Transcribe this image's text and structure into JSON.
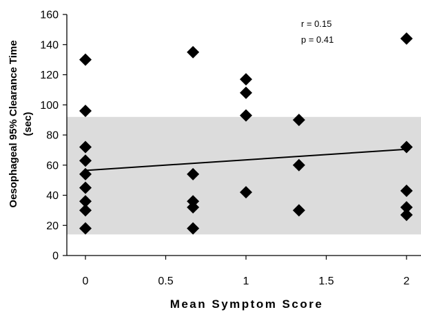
{
  "chart_data": {
    "type": "scatter",
    "title": "",
    "xlabel": "Mean Symptom Score",
    "ylabel_line1": "Oesophageal 95% Clearance Time",
    "ylabel_line2": "(sec)",
    "xlim": [
      0,
      2
    ],
    "ylim": [
      0,
      160
    ],
    "x_ticks": [
      "0",
      "0.5",
      "1",
      "1.5",
      "2"
    ],
    "y_ticks": [
      "0",
      "20",
      "40",
      "60",
      "80",
      "100",
      "120",
      "140",
      "160"
    ],
    "reference_band": {
      "y_min": 14,
      "y_max": 92,
      "color": "#dcdcdc"
    },
    "regression_line": {
      "x": [
        0,
        2
      ],
      "y": [
        56.5,
        70.5
      ]
    },
    "annotations": [
      "r = 0.15",
      "p = 0.41"
    ],
    "points": [
      {
        "x": 0,
        "y": 130
      },
      {
        "x": 0,
        "y": 96
      },
      {
        "x": 0,
        "y": 72
      },
      {
        "x": 0,
        "y": 63
      },
      {
        "x": 0,
        "y": 54
      },
      {
        "x": 0,
        "y": 45
      },
      {
        "x": 0,
        "y": 36
      },
      {
        "x": 0,
        "y": 30
      },
      {
        "x": 0,
        "y": 18
      },
      {
        "x": 0.67,
        "y": 135
      },
      {
        "x": 0.67,
        "y": 54
      },
      {
        "x": 0.67,
        "y": 36
      },
      {
        "x": 0.67,
        "y": 32
      },
      {
        "x": 0.67,
        "y": 18
      },
      {
        "x": 1,
        "y": 117
      },
      {
        "x": 1,
        "y": 108
      },
      {
        "x": 1,
        "y": 93
      },
      {
        "x": 1,
        "y": 42
      },
      {
        "x": 1.33,
        "y": 90
      },
      {
        "x": 1.33,
        "y": 60
      },
      {
        "x": 1.33,
        "y": 30
      },
      {
        "x": 2,
        "y": 144
      },
      {
        "x": 2,
        "y": 72
      },
      {
        "x": 2,
        "y": 43
      },
      {
        "x": 2,
        "y": 32
      },
      {
        "x": 2,
        "y": 27
      }
    ],
    "marker": "diamond",
    "marker_color": "#000000",
    "grid": false
  }
}
